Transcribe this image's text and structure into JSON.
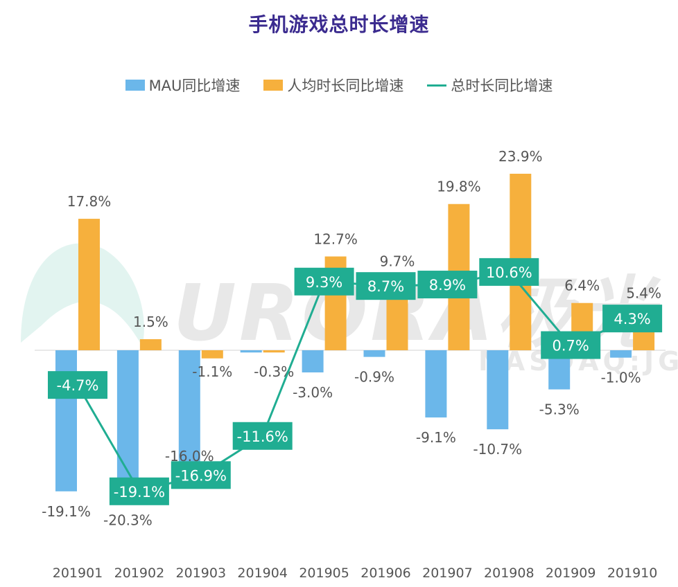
{
  "title": "手机游戏总时长增速",
  "colors": {
    "mau": "#6bb7ea",
    "per_capita": "#f6b03d",
    "total": "#20ad92",
    "title": "#3b2b8f"
  },
  "watermark": {
    "main": "URORA极光",
    "sub": "NASDAQ:JG"
  },
  "chart_data": {
    "type": "bar",
    "title": "手机游戏总时长增速",
    "categories": [
      "201901",
      "201902",
      "201903",
      "201904",
      "201905",
      "201906",
      "201907",
      "201908",
      "201909",
      "201910"
    ],
    "series": [
      {
        "name": "MAU同比增速",
        "type": "bar",
        "unit": "%",
        "values": [
          -19.1,
          -20.3,
          -16.0,
          -0.3,
          -3.0,
          -0.9,
          -9.1,
          -10.7,
          -5.3,
          -1.0
        ]
      },
      {
        "name": "人均时长同比增速",
        "type": "bar",
        "unit": "%",
        "values": [
          17.8,
          1.5,
          -1.1,
          -0.3,
          12.7,
          9.7,
          19.8,
          23.9,
          6.4,
          5.4
        ]
      },
      {
        "name": "总时长同比增速",
        "type": "line",
        "unit": "%",
        "values": [
          -4.7,
          -19.1,
          -16.9,
          -11.6,
          9.3,
          8.7,
          8.9,
          10.6,
          0.7,
          4.3
        ]
      }
    ],
    "mau_labels": [
      "-19.1%",
      "-20.3%",
      "-16.0%",
      "",
      "-3.0%",
      "-0.9%",
      "-9.1%",
      "-10.7%",
      "-5.3%",
      "-1.0%"
    ],
    "percap_labels": [
      "17.8%",
      "1.5%",
      "-1.1%",
      "-0.3%",
      "12.7%",
      "9.7%",
      "19.8%",
      "23.9%",
      "6.4%",
      "5.4%"
    ],
    "total_labels": [
      "-4.7%",
      "-19.1%",
      "-16.9%",
      "-11.6%",
      "9.3%",
      "8.7%",
      "8.9%",
      "10.6%",
      "0.7%",
      "4.3%"
    ],
    "legend_position": "top",
    "grid": false
  }
}
